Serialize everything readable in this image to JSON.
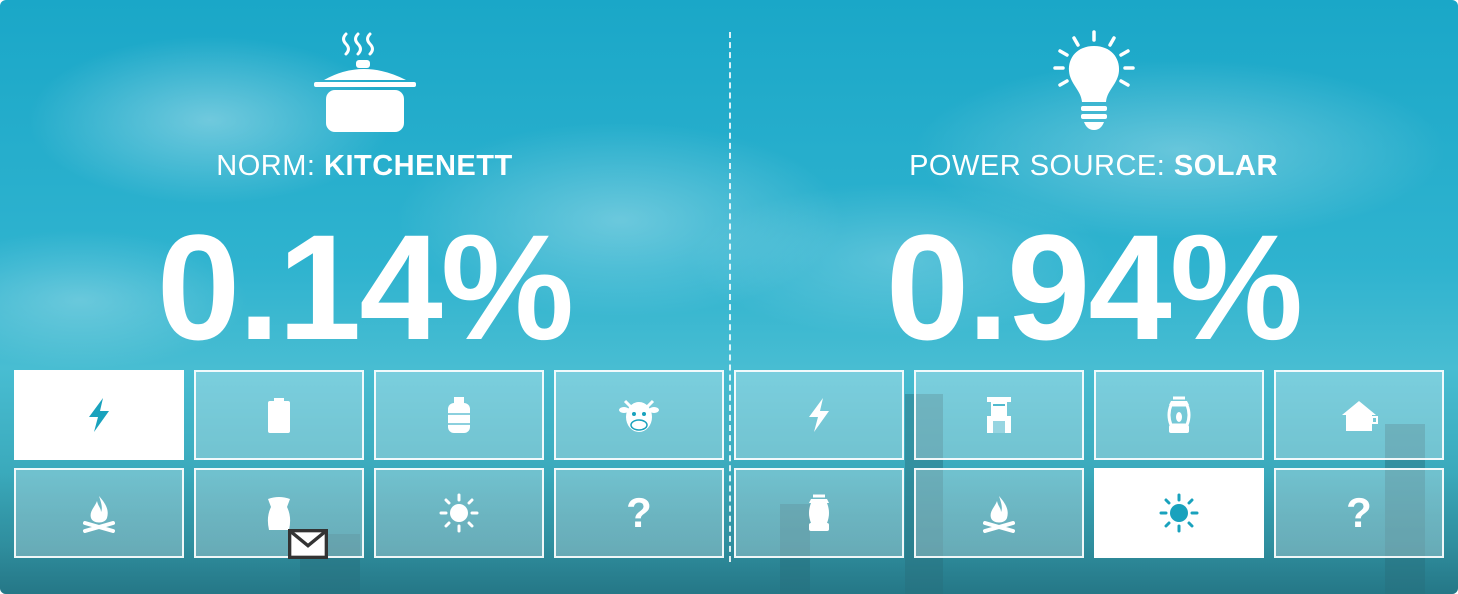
{
  "colors": {
    "accent": "#19a2bd",
    "tile_border": "#ffffff",
    "text": "#ffffff"
  },
  "left": {
    "icon": "cooking-pot-icon",
    "label_prefix": "NORM: ",
    "label_value": "KITCHENETT",
    "percentage": "0.14%",
    "tiles": [
      {
        "icon": "lightning-icon",
        "selected": true
      },
      {
        "icon": "battery-icon",
        "selected": false
      },
      {
        "icon": "gas-cylinder-icon",
        "selected": false
      },
      {
        "icon": "cow-icon",
        "selected": false
      },
      {
        "icon": "campfire-icon",
        "selected": false
      },
      {
        "icon": "charcoal-sack-icon",
        "selected": false
      },
      {
        "icon": "sun-icon",
        "selected": false
      },
      {
        "icon": "question-icon",
        "label": "?",
        "selected": false
      }
    ]
  },
  "right": {
    "icon": "lightbulb-icon",
    "label_prefix": "POWER SOURCE: ",
    "label_value": "SOLAR",
    "percentage": "0.94%",
    "tiles": [
      {
        "icon": "lightning-icon",
        "selected": false
      },
      {
        "icon": "generator-icon",
        "selected": false
      },
      {
        "icon": "kerosene-lantern-icon",
        "selected": false
      },
      {
        "icon": "house-icon",
        "selected": false
      },
      {
        "icon": "lantern-icon",
        "selected": false
      },
      {
        "icon": "campfire-icon",
        "selected": false
      },
      {
        "icon": "sun-icon",
        "selected": true
      },
      {
        "icon": "question-icon",
        "label": "?",
        "selected": false
      }
    ]
  }
}
